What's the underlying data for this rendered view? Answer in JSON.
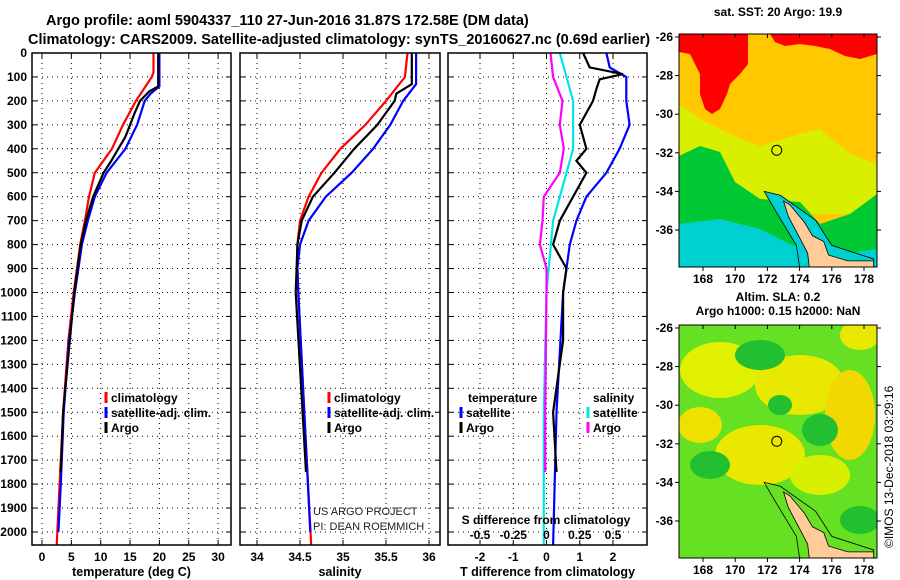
{
  "header": {
    "title_line1": "Argo profile: aoml 5904337_110 27-Jun-2016 31.87S 172.58E (DM data)",
    "title_line2": "Climatology: CARS2009. Satellite-adjusted climatology: synTS_20160627.nc (0.69d earlier)"
  },
  "credit": {
    "line1": "US ARGO PROJECT",
    "line2": "PI: DEAN ROEMMICH"
  },
  "watermark": "©IMOS 13-Dec-2018 03:29:16",
  "colors": {
    "climatology": "#ff0000",
    "satellite": "#0000ff",
    "argo": "#000000",
    "sal_satellite": "#00e5e5",
    "sal_argo": "#ff00ff"
  },
  "chart_data": [
    {
      "type": "line",
      "title": "",
      "xlabel": "temperature (deg C)",
      "ylabel": "",
      "xlim": [
        -2,
        32
      ],
      "ylim": [
        2055,
        0
      ],
      "xticks": [
        "0",
        "5",
        "10",
        "15",
        "20",
        "25",
        "30"
      ],
      "xtick_values": [
        0,
        5,
        10,
        15,
        20,
        25,
        30
      ],
      "yticks": [
        "0",
        "100",
        "200",
        "300",
        "400",
        "500",
        "600",
        "700",
        "800",
        "900",
        "1000",
        "1100",
        "1200",
        "1300",
        "1400",
        "1500",
        "1600",
        "1700",
        "1800",
        "1900",
        "2000"
      ],
      "legend": [
        "climatology",
        "satellite-adj. clim.",
        "Argo"
      ],
      "series": [
        {
          "name": "climatology",
          "color": "#ff0000",
          "depth": [
            0,
            80,
            100,
            200,
            300,
            400,
            500,
            600,
            700,
            800,
            1000,
            1200,
            1500,
            1800,
            2055
          ],
          "values": [
            19,
            19,
            18.7,
            16,
            13.8,
            11.9,
            9,
            8,
            7.3,
            6.5,
            5.4,
            4.5,
            3.6,
            3,
            2.5
          ]
        },
        {
          "name": "satellite-adj. clim.",
          "color": "#0000ff",
          "depth": [
            0,
            140,
            170,
            200,
            300,
            400,
            500,
            600,
            700,
            800,
            1000,
            1200,
            1500,
            1800,
            2000
          ],
          "values": [
            20,
            20,
            18.5,
            17.5,
            16.2,
            14.2,
            11,
            9,
            7.8,
            6.8,
            5.6,
            4.6,
            3.7,
            3.2,
            2.8
          ]
        },
        {
          "name": "Argo",
          "color": "#000000",
          "depth": [
            0,
            140,
            160,
            200,
            250,
            300,
            350,
            400,
            450,
            500,
            600,
            700,
            800,
            1000,
            1500,
            1750
          ],
          "values": [
            19.8,
            19.8,
            18.3,
            16.7,
            15.8,
            15,
            14.2,
            13,
            11.8,
            10.5,
            8.7,
            7.5,
            6.6,
            5.5,
            3.6,
            3.2
          ]
        }
      ]
    },
    {
      "type": "line",
      "xlabel": "salinity",
      "xlim": [
        33.82,
        36.15
      ],
      "ylim": [
        2055,
        0
      ],
      "xticks": [
        "34",
        "34.5",
        "35",
        "35.5",
        "36"
      ],
      "xtick_values": [
        34,
        34.5,
        35,
        35.5,
        36
      ],
      "legend": [
        "climatology",
        "satellite-adj. clim.",
        "Argo"
      ],
      "series": [
        {
          "name": "climatology",
          "color": "#ff0000",
          "depth": [
            0,
            100,
            200,
            300,
            400,
            500,
            600,
            700,
            800,
            900,
            1000,
            1500,
            2055
          ],
          "values": [
            35.75,
            35.72,
            35.5,
            35.26,
            34.97,
            34.75,
            34.6,
            34.5,
            34.47,
            34.47,
            34.48,
            34.55,
            34.63
          ]
        },
        {
          "name": "satellite-adj. clim.",
          "color": "#0000ff",
          "depth": [
            0,
            130,
            200,
            300,
            400,
            500,
            600,
            700,
            800,
            900,
            1000,
            1500,
            2000
          ],
          "values": [
            35.85,
            35.85,
            35.7,
            35.55,
            35.35,
            35.1,
            34.8,
            34.6,
            34.5,
            34.47,
            34.48,
            34.55,
            34.62
          ]
        },
        {
          "name": "Argo",
          "color": "#000000",
          "depth": [
            0,
            130,
            170,
            200,
            300,
            400,
            500,
            600,
            700,
            800,
            900,
            1000,
            1500,
            1750
          ],
          "values": [
            35.8,
            35.8,
            35.62,
            35.6,
            35.4,
            35.13,
            34.9,
            34.65,
            34.52,
            34.47,
            34.46,
            34.45,
            34.53,
            34.57
          ]
        }
      ]
    },
    {
      "type": "line",
      "xlabel": "T difference from climatology",
      "xlabel2": "S difference from climatology",
      "xlim": [
        -3,
        3
      ],
      "ylim": [
        2055,
        0
      ],
      "xticks": [
        "-2",
        "-1",
        "0",
        "1",
        "2"
      ],
      "xtick_values": [
        -2,
        -1,
        0,
        1,
        2
      ],
      "s_xticks": [
        "-0.5",
        "-0.25",
        "0",
        "0.25",
        "0.5"
      ],
      "s_xtick_values": [
        -0.5,
        -0.25,
        0,
        0.25,
        0.5
      ],
      "legend_temperature": {
        "title": "temperature",
        "items": [
          "satellite",
          "Argo"
        ]
      },
      "legend_salinity": {
        "title": "salinity",
        "items": [
          "satellite",
          "Argo"
        ]
      },
      "series": [
        {
          "name": "T satellite",
          "color": "#0000ff",
          "scale": "T",
          "depth": [
            0,
            60,
            100,
            200,
            300,
            400,
            500,
            600,
            700,
            800,
            1000,
            1500,
            2055
          ],
          "values": [
            1.8,
            1.9,
            2.4,
            2.4,
            2.5,
            2.2,
            1.8,
            1.2,
            0.9,
            0.7,
            0.5,
            0.3,
            0.2
          ]
        },
        {
          "name": "T Argo",
          "color": "#000000",
          "scale": "T",
          "depth": [
            0,
            60,
            88,
            110,
            150,
            200,
            250,
            300,
            350,
            400,
            450,
            500,
            550,
            600,
            700,
            800,
            900,
            1000,
            1200,
            1500,
            1750
          ],
          "values": [
            1.1,
            1.3,
            2.3,
            1.6,
            1.5,
            1.4,
            1.2,
            1.0,
            1.1,
            1.2,
            0.9,
            1.2,
            1.0,
            0.8,
            0.4,
            0.2,
            0.6,
            0.5,
            0.5,
            0.2,
            0.3
          ]
        },
        {
          "name": "S satellite",
          "color": "#00e5e5",
          "scale": "S",
          "depth": [
            0,
            100,
            200,
            400,
            500,
            600,
            700,
            1000,
            1500,
            2055
          ],
          "values": [
            0.1,
            0.15,
            0.2,
            0.2,
            0.15,
            0.1,
            0.05,
            0,
            -0.02,
            -0.02
          ]
        },
        {
          "name": "S Argo",
          "color": "#ff00ff",
          "scale": "S",
          "depth": [
            0,
            100,
            200,
            300,
            400,
            500,
            600,
            700,
            800,
            900,
            1000,
            1500,
            1750
          ],
          "values": [
            0.03,
            0.05,
            0.12,
            0.1,
            0.13,
            0.1,
            -0.02,
            -0.03,
            -0.05,
            0,
            0,
            -0.01,
            -0.01
          ]
        }
      ]
    }
  ],
  "maps": {
    "sst": {
      "title": "sat. SST: 20 Argo: 19.9"
    },
    "sla": {
      "title1": "Altim. SLA: 0.2",
      "title2": "Argo h1000: 0.15 h2000: NaN"
    },
    "lat_ticks": [
      "-26",
      "-28",
      "-30",
      "-32",
      "-34",
      "-36"
    ],
    "lat_values": [
      -26,
      -28,
      -30,
      -32,
      -34,
      -36
    ],
    "lon_ticks": [
      "168",
      "170",
      "172",
      "174",
      "176",
      "178"
    ],
    "lon_values": [
      168,
      170,
      172,
      174,
      176,
      178
    ],
    "profile_lon": 172.58,
    "profile_lat": -31.87
  }
}
